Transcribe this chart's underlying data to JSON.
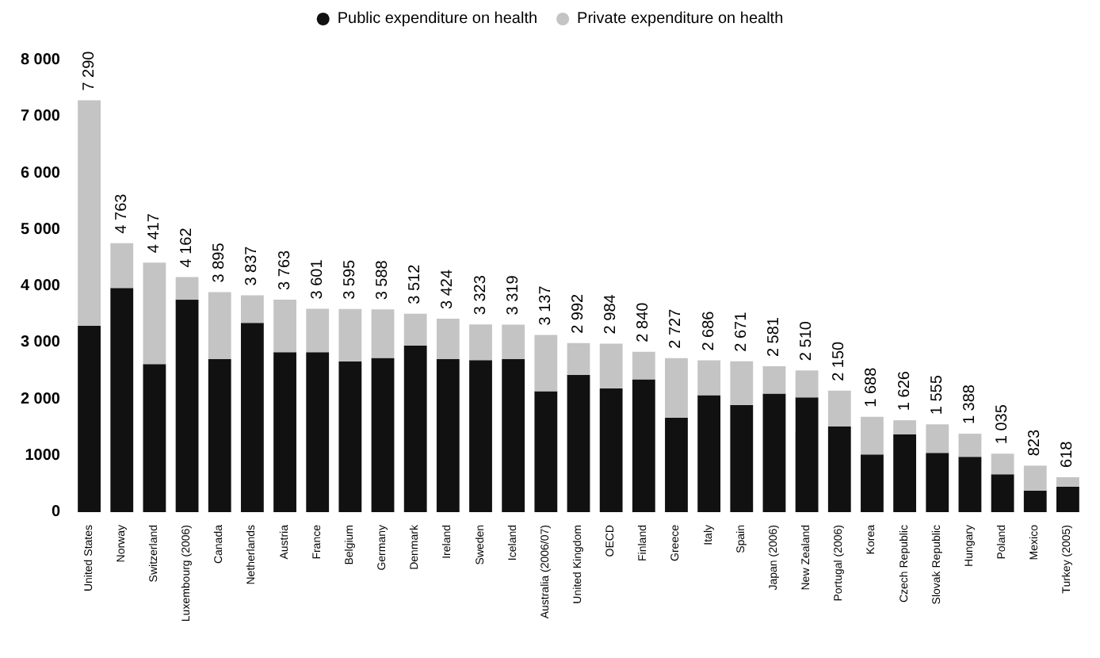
{
  "chart_data": {
    "type": "bar",
    "stacked": true,
    "categories": [
      "United States",
      "Norway",
      "Switzerland",
      "Luxembourg (2006)",
      "Canada",
      "Netherlands",
      "Austria",
      "France",
      "Belgium",
      "Germany",
      "Denmark",
      "Ireland",
      "Sweden",
      "Iceland",
      "Australia (2006/07)",
      "United Kingdom",
      "OECD",
      "Finland",
      "Greece",
      "Italy",
      "Spain",
      "Japan (2006)",
      "New Zealand",
      "Portugal (2006)",
      "Korea",
      "Czech Republic",
      "Slovak Republic",
      "Hungary",
      "Poland",
      "Mexico",
      "Turkey (2005)"
    ],
    "series": [
      {
        "name": "Public expenditure on health",
        "color": "#111111",
        "values": [
          3300,
          3970,
          2620,
          3760,
          2710,
          3350,
          2830,
          2830,
          2670,
          2730,
          2950,
          2710,
          2690,
          2710,
          2140,
          2430,
          2190,
          2350,
          1670,
          2070,
          1900,
          2100,
          2030,
          1520,
          1020,
          1380,
          1050,
          980,
          670,
          380,
          450
        ]
      },
      {
        "name": "Private expenditure on health",
        "color": "#c4c4c4",
        "values": [
          3990,
          793,
          1797,
          402,
          1185,
          487,
          933,
          771,
          925,
          858,
          562,
          714,
          633,
          609,
          997,
          562,
          794,
          490,
          1057,
          616,
          771,
          481,
          480,
          630,
          668,
          246,
          505,
          408,
          365,
          443,
          168
        ]
      }
    ],
    "totals": [
      "7 290",
      "4 763",
      "4 417",
      "4 162",
      "3 895",
      "3 837",
      "3 763",
      "3 601",
      "3 595",
      "3 588",
      "3 512",
      "3 424",
      "3 323",
      "3 319",
      "3 137",
      "2 992",
      "2 984",
      "2 840",
      "2 727",
      "2 686",
      "2 671",
      "2 581",
      "2 510",
      "2 150",
      "1 688",
      "1 626",
      "1 555",
      "1 388",
      "1 035",
      "823",
      "618"
    ],
    "ylim": [
      0,
      8000
    ],
    "yticks": [
      0,
      {
        "value": 1000,
        "label": "1000"
      },
      {
        "value": 2000,
        "label": "2 000"
      },
      {
        "value": 3000,
        "label": "3 000"
      },
      {
        "value": 4000,
        "label": "4 000"
      },
      {
        "value": 5000,
        "label": "5 000"
      },
      {
        "value": 6000,
        "label": "6 000"
      },
      {
        "value": 7000,
        "label": "7 000"
      },
      {
        "value": 8000,
        "label": "8 000"
      }
    ],
    "grid": false,
    "legend": "top"
  }
}
